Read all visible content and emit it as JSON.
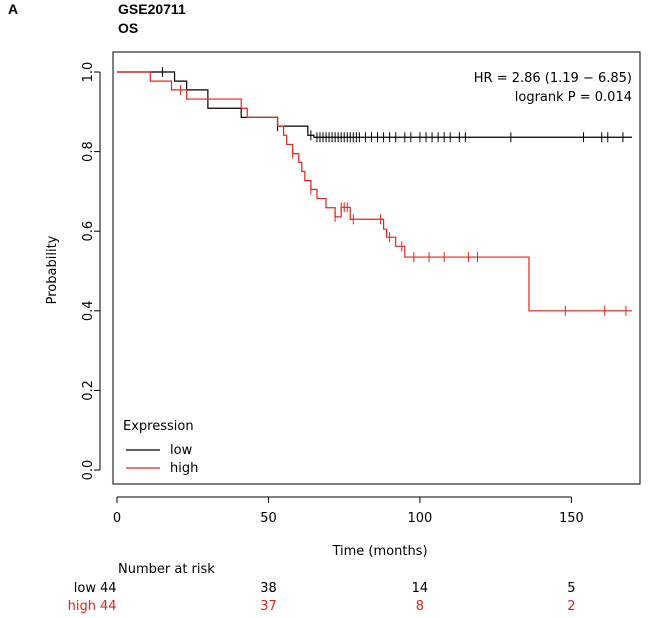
{
  "panel_label": "A",
  "header": {
    "dataset": "GSE20711",
    "endpoint": "OS"
  },
  "colors": {
    "low": "#000000",
    "high": "#e8231a",
    "axis": "#000000"
  },
  "chart_data": {
    "type": "line",
    "subtype": "kaplan-meier",
    "xlabel": "Time (months)",
    "ylabel": "Probability",
    "xlim": [
      0,
      170
    ],
    "ylim": [
      0,
      1
    ],
    "x_ticks": [
      0,
      50,
      100,
      150
    ],
    "y_ticks": [
      0.0,
      0.2,
      0.4,
      0.6,
      0.8,
      1.0
    ],
    "x_tick_labels": [
      "0",
      "50",
      "100",
      "150"
    ],
    "y_tick_labels": [
      "0.0",
      "0.2",
      "0.4",
      "0.6",
      "0.8",
      "1.0"
    ],
    "annotations": [
      "HR = 2.86 (1.19 − 6.85)",
      "logrank P = 0.014"
    ],
    "legend": {
      "title": "Expression",
      "position": "bottom-left",
      "entries": [
        "low",
        "high"
      ]
    },
    "series": [
      {
        "name": "low",
        "steps": [
          [
            0,
            1.0
          ],
          [
            19,
            0.977
          ],
          [
            23,
            0.955
          ],
          [
            30,
            0.909
          ],
          [
            41,
            0.886
          ],
          [
            53,
            0.864
          ],
          [
            63,
            0.841
          ],
          [
            65,
            0.836
          ],
          [
            170,
            0.836
          ]
        ],
        "censor_times": [
          15,
          53,
          64,
          66,
          67,
          68,
          69,
          70,
          71,
          72,
          73,
          74,
          75,
          76,
          77,
          78,
          79,
          80,
          82,
          84,
          86,
          88,
          90,
          92,
          95,
          97,
          100,
          102,
          104,
          106,
          108,
          110,
          113,
          115,
          130,
          154,
          160,
          162,
          167
        ]
      },
      {
        "name": "high",
        "steps": [
          [
            0,
            1.0
          ],
          [
            11,
            0.977
          ],
          [
            18,
            0.955
          ],
          [
            23,
            0.932
          ],
          [
            41,
            0.909
          ],
          [
            43,
            0.886
          ],
          [
            53,
            0.864
          ],
          [
            55,
            0.841
          ],
          [
            56,
            0.818
          ],
          [
            58,
            0.795
          ],
          [
            60,
            0.773
          ],
          [
            61,
            0.75
          ],
          [
            62,
            0.727
          ],
          [
            64,
            0.705
          ],
          [
            66,
            0.682
          ],
          [
            69,
            0.659
          ],
          [
            72,
            0.636
          ],
          [
            74,
            0.66
          ],
          [
            77,
            0.63
          ],
          [
            88,
            0.605
          ],
          [
            89,
            0.585
          ],
          [
            92,
            0.562
          ],
          [
            95,
            0.535
          ],
          [
            121,
            0.535
          ],
          [
            136,
            0.535
          ],
          [
            136,
            0.4
          ],
          [
            170,
            0.4
          ]
        ],
        "censor_times": [
          21,
          58,
          64,
          72,
          74,
          75,
          76,
          78,
          87,
          90,
          94,
          98,
          103,
          108,
          116,
          119,
          148,
          161,
          168
        ]
      }
    ],
    "risk_table": {
      "title": "Number at risk",
      "times": [
        0,
        50,
        100,
        150
      ],
      "rows": [
        {
          "label": "low",
          "values": [
            "44",
            "38",
            "14",
            "5"
          ]
        },
        {
          "label": "high",
          "values": [
            "44",
            "37",
            "8",
            "2"
          ]
        }
      ]
    }
  }
}
